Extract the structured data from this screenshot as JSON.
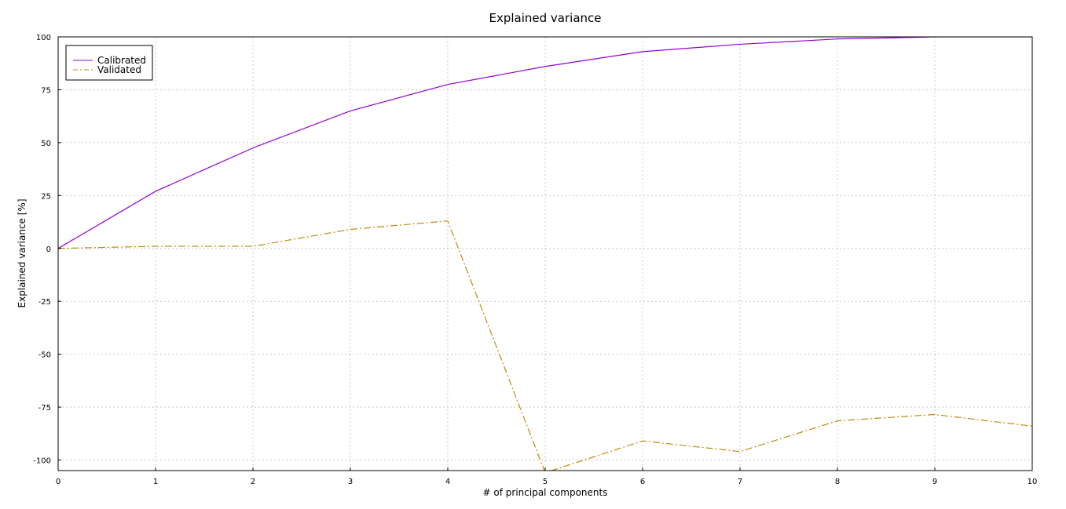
{
  "chart_data": {
    "type": "line",
    "title": "Explained variance",
    "xlabel": "# of principal components",
    "ylabel": "Explained variance [%]",
    "xlim": [
      0,
      10
    ],
    "ylim": [
      -105,
      100
    ],
    "x_ticks": [
      "0",
      "1",
      "2",
      "3",
      "4",
      "5",
      "6",
      "7",
      "8",
      "9",
      "10"
    ],
    "y_ticks": [
      "100",
      "75",
      "50",
      "25",
      "0",
      "-25",
      "-50",
      "-75",
      "-100"
    ],
    "grid": true,
    "legend_position": "top-left",
    "x": [
      0,
      1,
      2,
      3,
      4,
      5,
      6,
      7,
      8,
      9,
      10
    ],
    "series": [
      {
        "name": "Calibrated",
        "color": "#9400d3",
        "style": "solid",
        "values": [
          0,
          27,
          47.5,
          65,
          77.5,
          86,
          93,
          96.5,
          99,
          100,
          100
        ]
      },
      {
        "name": "Validated",
        "color": "#c08a10",
        "style": "dash-dot",
        "values": [
          0,
          1,
          1,
          9,
          13,
          -106,
          -91,
          -96,
          -81.5,
          -78.5,
          -84
        ]
      }
    ]
  }
}
